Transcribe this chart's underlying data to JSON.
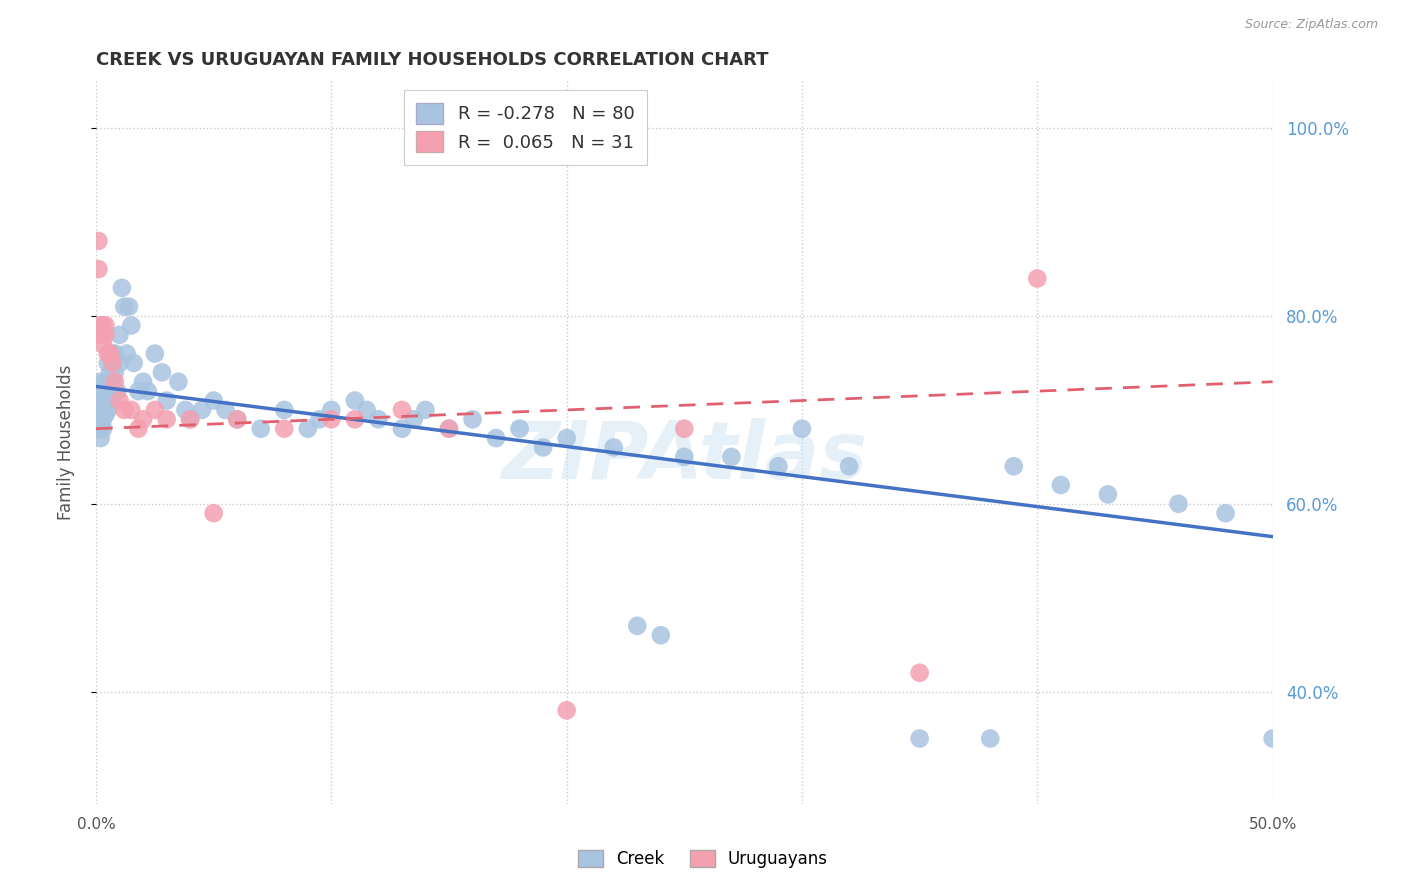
{
  "title": "CREEK VS URUGUAYAN FAMILY HOUSEHOLDS CORRELATION CHART",
  "source": "Source: ZipAtlas.com",
  "ylabel": "Family Households",
  "xmin": 0.0,
  "xmax": 0.5,
  "ymin": 0.28,
  "ymax": 1.05,
  "yticks": [
    0.4,
    0.6,
    0.8,
    1.0
  ],
  "ytick_labels": [
    "40.0%",
    "60.0%",
    "80.0%",
    "100.0%"
  ],
  "xticks": [
    0.0,
    0.1,
    0.2,
    0.3,
    0.4,
    0.5
  ],
  "xtick_labels": [
    "0.0%",
    "",
    "",
    "",
    "",
    "50.0%"
  ],
  "creek_color": "#a8c4e0",
  "creek_color_line": "#4472c4",
  "uruguayan_color": "#f4a0b0",
  "uruguayan_color_line": "#e06070",
  "creek_R": -0.278,
  "creek_N": 80,
  "uruguayan_R": 0.065,
  "uruguayan_N": 31,
  "watermark": "ZIPAtlas",
  "creek_line_x0": 0.0,
  "creek_line_y0": 0.725,
  "creek_line_x1": 0.5,
  "creek_line_y1": 0.565,
  "uru_line_x0": 0.0,
  "uru_line_y0": 0.68,
  "uru_line_x1": 0.5,
  "uru_line_y1": 0.73,
  "creek_x": [
    0.001,
    0.001,
    0.001,
    0.002,
    0.002,
    0.002,
    0.002,
    0.003,
    0.003,
    0.003,
    0.003,
    0.003,
    0.004,
    0.004,
    0.004,
    0.005,
    0.005,
    0.005,
    0.006,
    0.006,
    0.006,
    0.007,
    0.007,
    0.008,
    0.008,
    0.009,
    0.01,
    0.01,
    0.011,
    0.012,
    0.013,
    0.014,
    0.015,
    0.016,
    0.018,
    0.02,
    0.022,
    0.025,
    0.028,
    0.03,
    0.035,
    0.038,
    0.04,
    0.045,
    0.05,
    0.055,
    0.06,
    0.07,
    0.08,
    0.09,
    0.095,
    0.1,
    0.11,
    0.115,
    0.12,
    0.13,
    0.135,
    0.14,
    0.15,
    0.16,
    0.17,
    0.18,
    0.19,
    0.2,
    0.22,
    0.23,
    0.24,
    0.25,
    0.27,
    0.29,
    0.3,
    0.32,
    0.35,
    0.38,
    0.39,
    0.41,
    0.43,
    0.46,
    0.48,
    0.5
  ],
  "creek_y": [
    0.72,
    0.7,
    0.68,
    0.73,
    0.7,
    0.68,
    0.67,
    0.72,
    0.7,
    0.68,
    0.71,
    0.69,
    0.73,
    0.71,
    0.695,
    0.75,
    0.72,
    0.7,
    0.76,
    0.74,
    0.71,
    0.76,
    0.73,
    0.76,
    0.74,
    0.72,
    0.78,
    0.75,
    0.83,
    0.81,
    0.76,
    0.81,
    0.79,
    0.75,
    0.72,
    0.73,
    0.72,
    0.76,
    0.74,
    0.71,
    0.73,
    0.7,
    0.69,
    0.7,
    0.71,
    0.7,
    0.69,
    0.68,
    0.7,
    0.68,
    0.69,
    0.7,
    0.71,
    0.7,
    0.69,
    0.68,
    0.69,
    0.7,
    0.68,
    0.69,
    0.67,
    0.68,
    0.66,
    0.67,
    0.66,
    0.47,
    0.46,
    0.65,
    0.65,
    0.64,
    0.68,
    0.64,
    0.35,
    0.35,
    0.64,
    0.62,
    0.61,
    0.6,
    0.59,
    0.35
  ],
  "uruguayan_x": [
    0.001,
    0.001,
    0.002,
    0.002,
    0.003,
    0.003,
    0.004,
    0.004,
    0.005,
    0.006,
    0.007,
    0.008,
    0.01,
    0.012,
    0.015,
    0.018,
    0.02,
    0.025,
    0.03,
    0.04,
    0.05,
    0.06,
    0.08,
    0.1,
    0.11,
    0.13,
    0.15,
    0.2,
    0.25,
    0.35,
    0.4
  ],
  "uruguayan_y": [
    0.88,
    0.85,
    0.79,
    0.78,
    0.79,
    0.77,
    0.79,
    0.78,
    0.76,
    0.76,
    0.75,
    0.73,
    0.71,
    0.7,
    0.7,
    0.68,
    0.69,
    0.7,
    0.69,
    0.69,
    0.59,
    0.69,
    0.68,
    0.69,
    0.69,
    0.7,
    0.68,
    0.38,
    0.68,
    0.42,
    0.84
  ]
}
